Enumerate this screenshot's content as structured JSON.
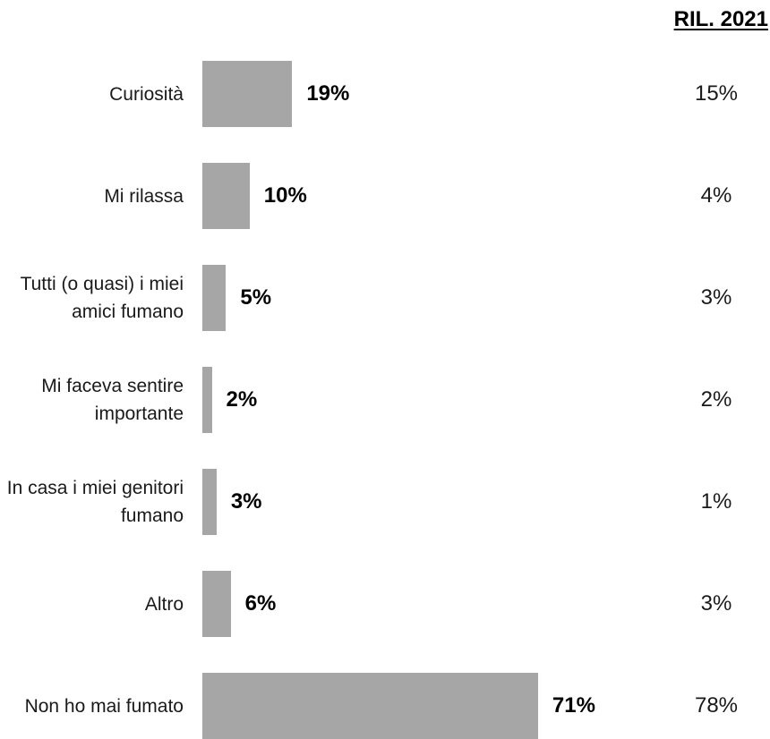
{
  "header": {
    "previous_label": "RIL. 2021"
  },
  "chart_data": {
    "type": "bar",
    "orientation": "horizontal",
    "title": "",
    "categories": [
      "Curiosità",
      "Mi rilassa",
      "Tutti (o quasi) i miei amici fumano",
      "Mi faceva sentire importante",
      "In casa i miei genitori fumano",
      "Altro",
      "Non ho mai fumato"
    ],
    "values": [
      19,
      10,
      5,
      2,
      3,
      6,
      71
    ],
    "value_labels": [
      "19%",
      "10%",
      "5%",
      "2%",
      "3%",
      "6%",
      "71%"
    ],
    "previous_values": [
      15,
      4,
      3,
      2,
      1,
      3,
      78
    ],
    "previous_labels": [
      "15%",
      "4%",
      "3%",
      "2%",
      "1%",
      "3%",
      "78%"
    ],
    "bar_color": "#a6a6a6",
    "xlim": [
      0,
      100
    ],
    "grid": false,
    "legend": "none"
  }
}
